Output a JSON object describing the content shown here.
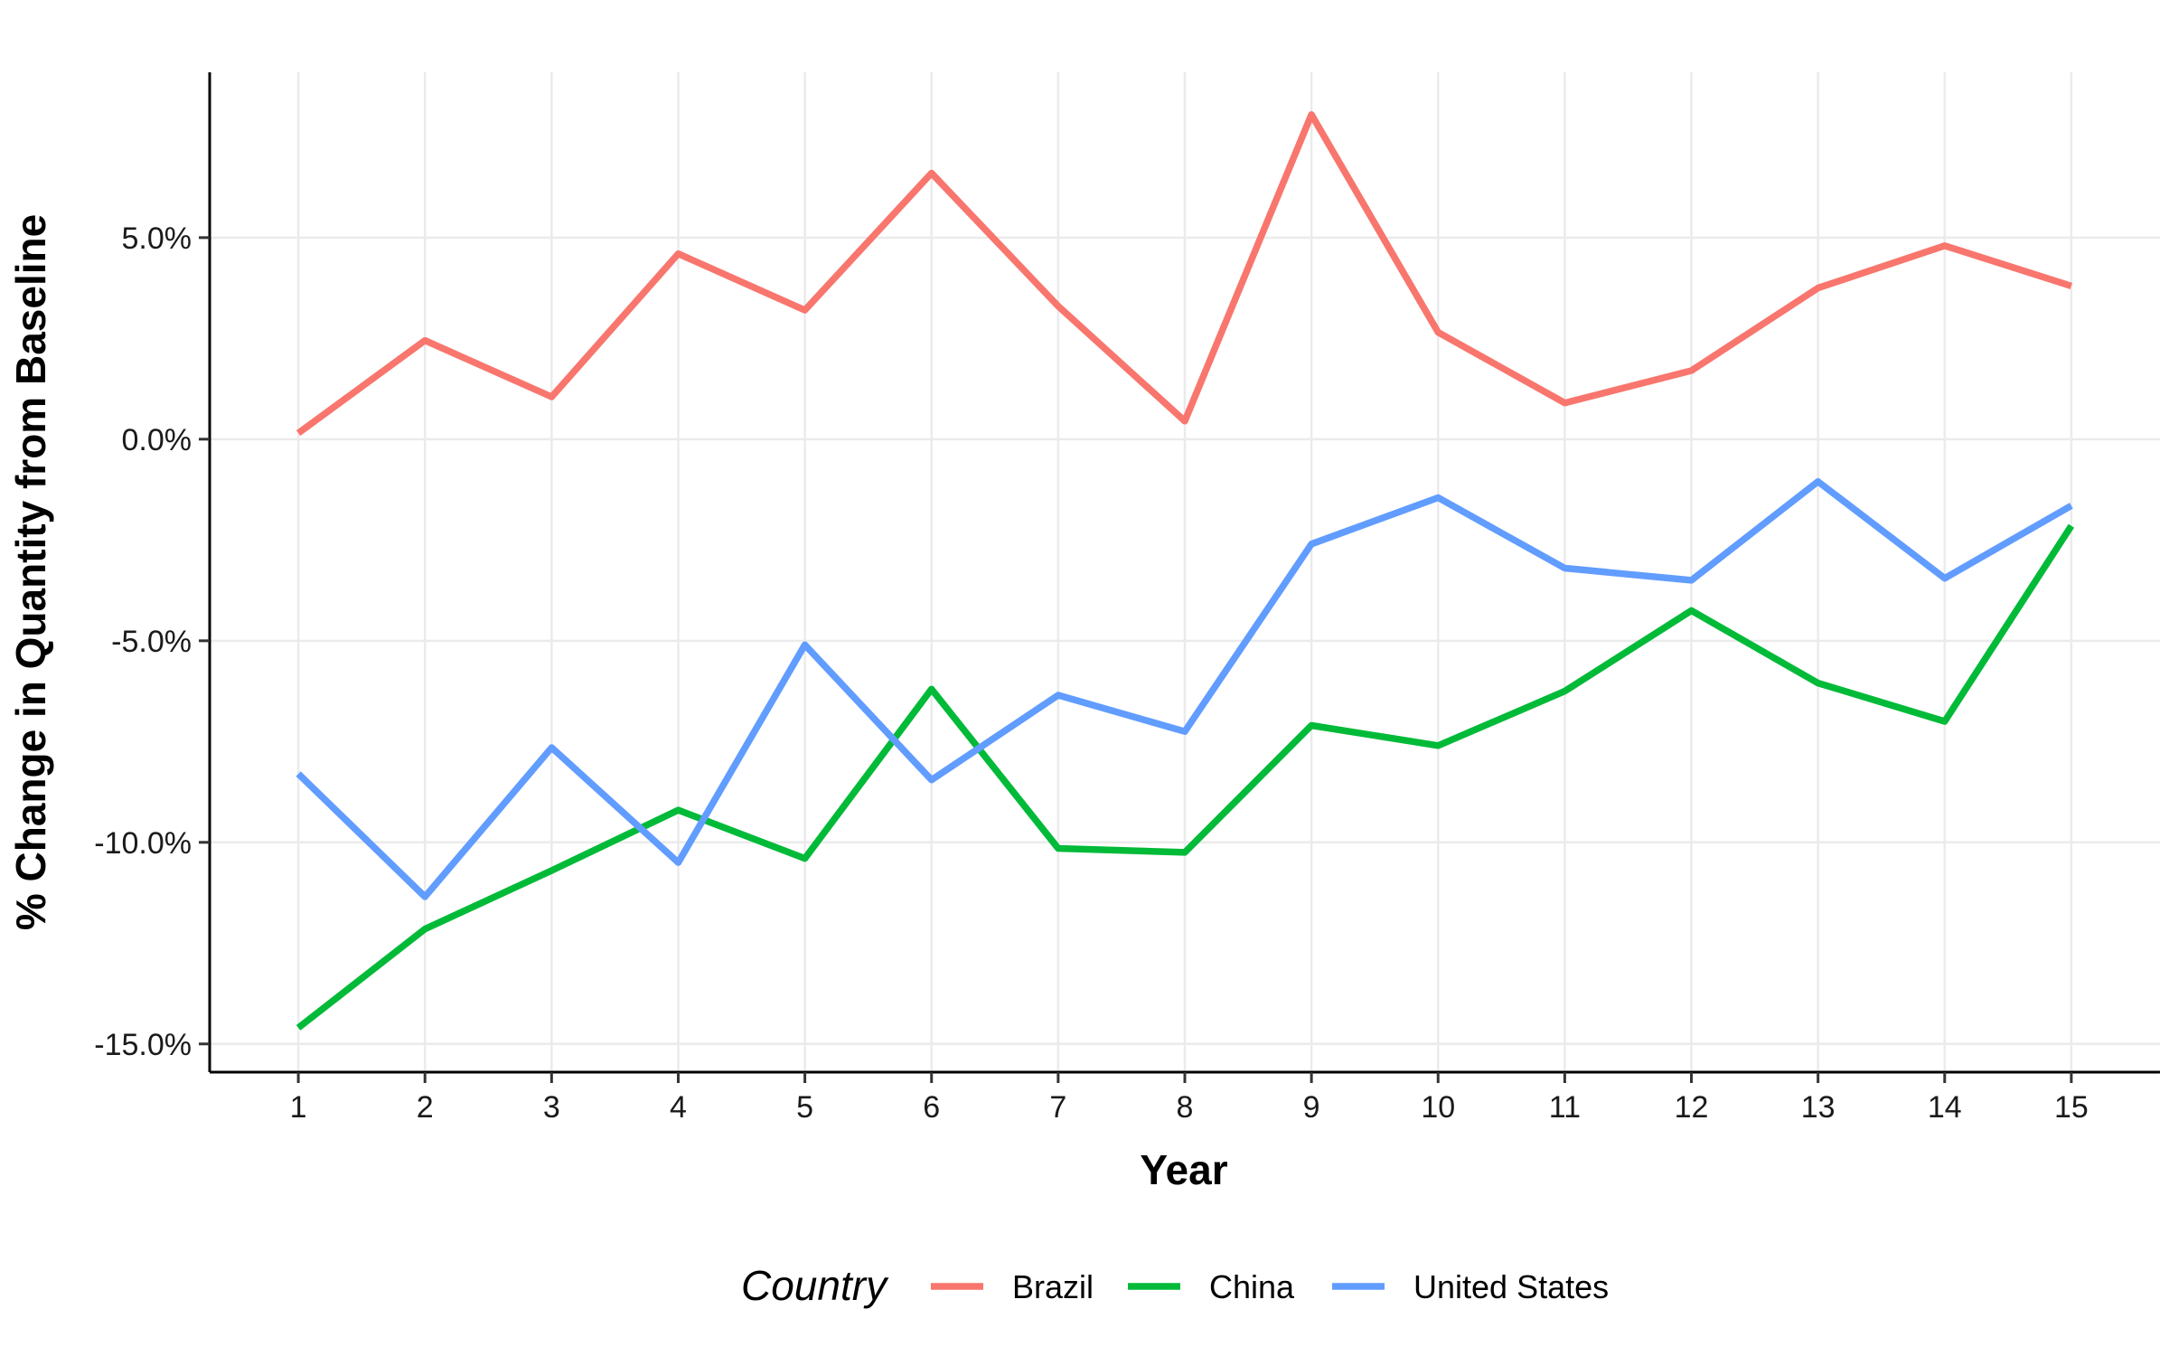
{
  "chart_data": {
    "type": "line",
    "xlabel": "% Change in Quantity from Baseline",
    "x_title": "Year",
    "y_title": "% Change in Quantity from Baseline",
    "x": [
      1,
      2,
      3,
      4,
      5,
      6,
      7,
      8,
      9,
      10,
      11,
      12,
      13,
      14,
      15
    ],
    "x_tick_labels": [
      "1",
      "2",
      "3",
      "4",
      "5",
      "6",
      "7",
      "8",
      "9",
      "10",
      "11",
      "12",
      "13",
      "14",
      "15"
    ],
    "y_ticks": [
      5.0,
      0.0,
      -5.0,
      -10.0,
      -15.0
    ],
    "y_tick_labels": [
      "5.0%",
      "0.0%",
      "-5.0%",
      "-10.0%",
      "-15.0%"
    ],
    "ylim": [
      -15.7,
      9.1
    ],
    "xlim": [
      0.3,
      15.7
    ],
    "grid": true,
    "legend_position": "bottom",
    "legend_title": "Country",
    "series": [
      {
        "name": "Brazil",
        "color": "#F8766D",
        "values": [
          0.15,
          2.45,
          1.05,
          4.6,
          3.2,
          6.6,
          3.3,
          0.45,
          8.05,
          2.65,
          0.9,
          1.7,
          3.75,
          4.8,
          3.8
        ]
      },
      {
        "name": "China",
        "color": "#00BA38",
        "values": [
          -14.6,
          -12.15,
          -10.7,
          -9.2,
          -10.4,
          -6.2,
          -10.15,
          -10.25,
          -7.1,
          -7.6,
          -6.25,
          -4.25,
          -6.05,
          -7.0,
          -2.15
        ]
      },
      {
        "name": "United States",
        "color": "#619CFF",
        "values": [
          -8.3,
          -11.35,
          -7.65,
          -10.5,
          -5.1,
          -8.45,
          -6.35,
          -7.25,
          -2.6,
          -1.45,
          -3.2,
          -3.5,
          -1.05,
          -3.45,
          -1.65
        ]
      }
    ]
  }
}
